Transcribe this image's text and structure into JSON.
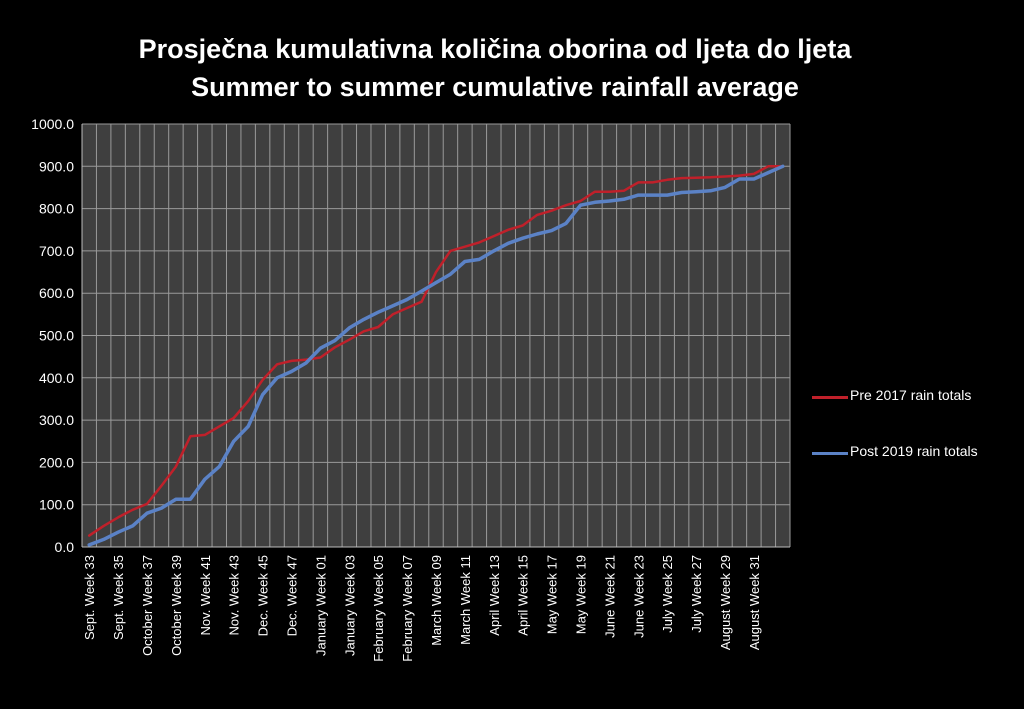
{
  "chart_data": {
    "type": "line",
    "title": "Prosječna kumulativna količina oborina od ljeta do ljeta",
    "subtitle": "Summer to summer cumulative rainfall average",
    "xlabel": "",
    "ylabel": "",
    "ylim": [
      0,
      1000
    ],
    "y_ticks": [
      "0.0",
      "100.0",
      "200.0",
      "300.0",
      "400.0",
      "500.0",
      "600.0",
      "700.0",
      "800.0",
      "900.0",
      "1000.0"
    ],
    "grid": true,
    "legend_position": "right",
    "x_tick_labels": [
      "Sept. Week 33",
      "Sept. Week 35",
      "October Week 37",
      "October Week 39",
      "Nov. Week 41",
      "Nov. Week 43",
      "Dec. Week 45",
      "Dec. Week 47",
      "January Week 01",
      "January Week 03",
      "February Week 05",
      "February Week 07",
      "March Week 09",
      "March Week 11",
      "April Week 13",
      "April Week 15",
      "May Week 17",
      "May Week 19",
      "June Week 21",
      "June Week 23",
      "July Week 25",
      "July Week 27",
      "August Week 29",
      "August Week 31"
    ],
    "point_count": 49,
    "series": [
      {
        "name": "Pre 2017 rain totals",
        "color": "#c0202a",
        "values": [
          27,
          50,
          70,
          88,
          102,
          145,
          190,
          262,
          265,
          285,
          305,
          345,
          395,
          432,
          440,
          443,
          448,
          472,
          490,
          510,
          520,
          550,
          565,
          580,
          650,
          700,
          710,
          720,
          735,
          750,
          760,
          785,
          795,
          808,
          818,
          840,
          840,
          842,
          862,
          862,
          868,
          872,
          873,
          874,
          876,
          878,
          882,
          900,
          900
        ]
      },
      {
        "name": "Post 2019 rain totals",
        "color": "#5b82c6",
        "values": [
          5,
          18,
          35,
          50,
          80,
          92,
          113,
          113,
          160,
          190,
          250,
          285,
          360,
          400,
          415,
          435,
          470,
          488,
          518,
          538,
          555,
          570,
          585,
          605,
          625,
          645,
          675,
          680,
          700,
          718,
          730,
          740,
          748,
          765,
          808,
          815,
          818,
          822,
          832,
          832,
          832,
          838,
          840,
          842,
          850,
          870,
          870,
          885,
          900
        ]
      }
    ]
  },
  "colors": {
    "background": "#000000",
    "plot_area": "#3f3f3f",
    "gridline": "#9a9a9a",
    "text": "#ffffff"
  }
}
